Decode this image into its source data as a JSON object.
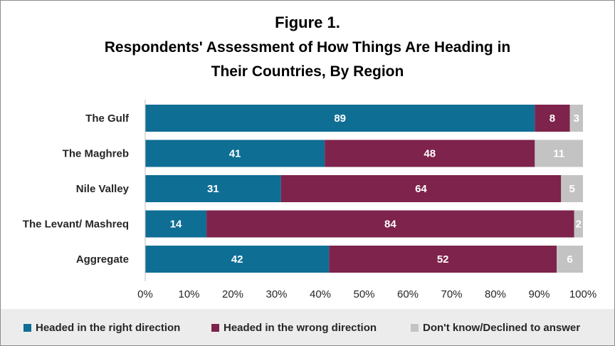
{
  "chart_data": {
    "type": "bar",
    "orientation": "horizontal",
    "stacked": true,
    "title": "Figure 1.",
    "subtitle_lines": [
      "Respondents' Assessment of How Things Are Heading in",
      "Their Countries, By Region"
    ],
    "categories": [
      "The Gulf",
      "The Maghreb",
      "Nile Valley",
      "The Levant/ Mashreq",
      "Aggregate"
    ],
    "series": [
      {
        "name": "Headed in the right direction",
        "color": "#0f6e94",
        "values": [
          89,
          41,
          31,
          14,
          42
        ]
      },
      {
        "name": "Headed in the wrong direction",
        "color": "#7e234b",
        "values": [
          8,
          48,
          64,
          84,
          52
        ]
      },
      {
        "name": "Don't know/Declined to answer",
        "color": "#c3c3c3",
        "values": [
          3,
          11,
          5,
          2,
          6
        ]
      }
    ],
    "xlim": [
      0,
      100
    ],
    "xticks": [
      "0%",
      "10%",
      "20%",
      "30%",
      "40%",
      "50%",
      "60%",
      "70%",
      "80%",
      "90%",
      "100%"
    ],
    "legend_position": "bottom",
    "grid": false
  }
}
